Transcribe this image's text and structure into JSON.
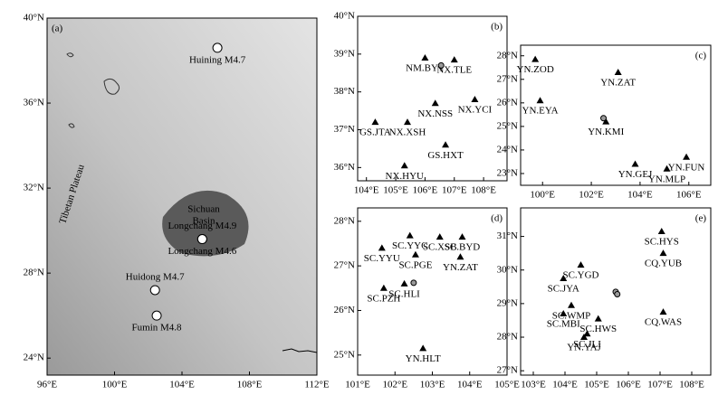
{
  "panels": [
    {
      "label": "(a)",
      "xlim": [
        96,
        112
      ],
      "ylim": [
        23.2,
        40
      ],
      "xticks": [
        {
          "value": 96,
          "label": "96°E"
        },
        {
          "value": 100,
          "label": "100°E"
        },
        {
          "value": 104,
          "label": "104°E"
        },
        {
          "value": 108,
          "label": "108°E"
        },
        {
          "value": 112,
          "label": "112°E"
        }
      ],
      "yticks": [
        {
          "value": 24,
          "label": "24°N"
        },
        {
          "value": 28,
          "label": "28°N"
        },
        {
          "value": 32,
          "label": "32°N"
        },
        {
          "value": 36,
          "label": "36°N"
        },
        {
          "value": 40,
          "label": "40°N"
        }
      ],
      "notes": [
        "Tibetan Plateau",
        "Sichuan",
        "Basin"
      ],
      "events": [
        {
          "name": "Huining M4.7",
          "lon": 106.1,
          "lat": 38.6
        },
        {
          "name": "Longchang M4.9",
          "lon": 105.2,
          "lat": 29.6
        },
        {
          "name": "Longchang M4.6",
          "lon": 105.2,
          "lat": 29.6
        },
        {
          "name": "Huidong M4.7",
          "lon": 102.4,
          "lat": 27.2
        },
        {
          "name": "Fumin M4.8",
          "lon": 102.5,
          "lat": 26.0
        }
      ],
      "stations": []
    },
    {
      "label": "(b)",
      "xlim": [
        103.7,
        108.8
      ],
      "ylim": [
        35.65,
        40
      ],
      "xticks": [
        {
          "value": 104,
          "label": "104°E"
        },
        {
          "value": 105,
          "label": "105°E"
        },
        {
          "value": 106,
          "label": "106°E"
        },
        {
          "value": 107,
          "label": "107°E"
        },
        {
          "value": 108,
          "label": "108°E"
        }
      ],
      "yticks": [
        {
          "value": 36,
          "label": "36°N"
        },
        {
          "value": 37,
          "label": "37°N"
        },
        {
          "value": 38,
          "label": "38°N"
        },
        {
          "value": 39,
          "label": "39°N"
        },
        {
          "value": 40,
          "label": "40°N"
        }
      ],
      "events": [
        {
          "lon": 106.55,
          "lat": 38.7
        }
      ],
      "stations": [
        {
          "name": "NM.BYT",
          "lon": 106.0,
          "lat": 38.9
        },
        {
          "name": "NX.TLE",
          "lon": 107.0,
          "lat": 38.85
        },
        {
          "name": "NX.NSS",
          "lon": 106.35,
          "lat": 37.7
        },
        {
          "name": "NX.YCI",
          "lon": 107.7,
          "lat": 37.8
        },
        {
          "name": "GS.JTA",
          "lon": 104.3,
          "lat": 37.2
        },
        {
          "name": "NX.XSH",
          "lon": 105.4,
          "lat": 37.2
        },
        {
          "name": "GS.HXT",
          "lon": 106.7,
          "lat": 36.6
        },
        {
          "name": "NX.HYU",
          "lon": 105.3,
          "lat": 36.05
        }
      ]
    },
    {
      "label": "(c)",
      "xlim": [
        99.1,
        106.9
      ],
      "ylim": [
        22.5,
        28.45
      ],
      "xticks": [
        {
          "value": 100,
          "label": "100°E"
        },
        {
          "value": 102,
          "label": "102°E"
        },
        {
          "value": 104,
          "label": "104°E"
        },
        {
          "value": 106,
          "label": "106°E"
        }
      ],
      "yticks": [
        {
          "value": 23,
          "label": "23°N"
        },
        {
          "value": 24,
          "label": "24°N"
        },
        {
          "value": 25,
          "label": "25°N"
        },
        {
          "value": 26,
          "label": "26°N"
        },
        {
          "value": 27,
          "label": "27°N"
        },
        {
          "value": 28,
          "label": "28°N"
        }
      ],
      "events": [
        {
          "lon": 102.5,
          "lat": 25.35
        }
      ],
      "stations": [
        {
          "name": "YN.ZOD",
          "lon": 99.7,
          "lat": 27.85
        },
        {
          "name": "YN.ZAT",
          "lon": 103.1,
          "lat": 27.3
        },
        {
          "name": "YN.EYA",
          "lon": 99.9,
          "lat": 26.1
        },
        {
          "name": "YN.KMI",
          "lon": 102.6,
          "lat": 25.2
        },
        {
          "name": "YN.FUN",
          "lon": 105.9,
          "lat": 23.7
        },
        {
          "name": "YN.GEJ",
          "lon": 103.8,
          "lat": 23.4
        },
        {
          "name": "YN.MLP",
          "lon": 105.1,
          "lat": 23.2
        }
      ]
    },
    {
      "label": "(d)",
      "xlim": [
        101,
        105
      ],
      "ylim": [
        24.55,
        28.3
      ],
      "xticks": [
        {
          "value": 101,
          "label": "101°E"
        },
        {
          "value": 102,
          "label": "102°E"
        },
        {
          "value": 103,
          "label": "103°E"
        },
        {
          "value": 104,
          "label": "104°E"
        },
        {
          "value": 105,
          "label": "105°E"
        }
      ],
      "yticks": [
        {
          "value": 25,
          "label": "25°N"
        },
        {
          "value": 26,
          "label": "26°N"
        },
        {
          "value": 27,
          "label": "27°N"
        },
        {
          "value": 28,
          "label": "28°N"
        }
      ],
      "events": [
        {
          "lon": 102.5,
          "lat": 26.62
        }
      ],
      "stations": [
        {
          "name": "SC.XSB",
          "lon": 103.2,
          "lat": 27.65
        },
        {
          "name": "SC.YYC",
          "lon": 102.4,
          "lat": 27.68
        },
        {
          "name": "SC.BYD",
          "lon": 103.8,
          "lat": 27.65
        },
        {
          "name": "SC.YYU",
          "lon": 101.65,
          "lat": 27.4
        },
        {
          "name": "SC.PGE",
          "lon": 102.55,
          "lat": 27.25
        },
        {
          "name": "YN.ZAT",
          "lon": 103.75,
          "lat": 27.2
        },
        {
          "name": "SC.HLI",
          "lon": 102.25,
          "lat": 26.6
        },
        {
          "name": "SC.PZH",
          "lon": 101.7,
          "lat": 26.5
        },
        {
          "name": "YN.HLT",
          "lon": 102.75,
          "lat": 25.15
        }
      ]
    },
    {
      "label": "(e)",
      "xlim": [
        102.6,
        108.6
      ],
      "ylim": [
        26.87,
        31.85
      ],
      "xticks": [
        {
          "value": 103,
          "label": "103°E"
        },
        {
          "value": 104,
          "label": "104°E"
        },
        {
          "value": 105,
          "label": "105°E"
        },
        {
          "value": 106,
          "label": "106°E"
        },
        {
          "value": 107,
          "label": "107°E"
        },
        {
          "value": 108,
          "label": "108°E"
        }
      ],
      "yticks": [
        {
          "value": 27,
          "label": "27°N"
        },
        {
          "value": 28,
          "label": "28°N"
        },
        {
          "value": 29,
          "label": "29°N"
        },
        {
          "value": 30,
          "label": "30°N"
        },
        {
          "value": 31,
          "label": "31°N"
        }
      ],
      "events": [
        {
          "lon": 105.6,
          "lat": 29.35
        },
        {
          "lon": 105.65,
          "lat": 29.28
        }
      ],
      "stations": [
        {
          "name": "SC.YGD",
          "lon": 104.5,
          "lat": 30.15
        },
        {
          "name": "SC.HYS",
          "lon": 107.05,
          "lat": 31.15
        },
        {
          "name": "CQ.YUB",
          "lon": 107.1,
          "lat": 30.5
        },
        {
          "name": "SC.JYA",
          "lon": 103.95,
          "lat": 29.75
        },
        {
          "name": "SC.WMP",
          "lon": 104.2,
          "lat": 28.95
        },
        {
          "name": "SC.MBI",
          "lon": 103.95,
          "lat": 28.7
        },
        {
          "name": "SC.HWS",
          "lon": 105.05,
          "lat": 28.55
        },
        {
          "name": "SC.JLI",
          "lon": 104.7,
          "lat": 28.1
        },
        {
          "name": "YN.YAJ",
          "lon": 104.6,
          "lat": 28.0
        },
        {
          "name": "CQ.WAS",
          "lon": 107.1,
          "lat": 28.75
        }
      ]
    }
  ]
}
